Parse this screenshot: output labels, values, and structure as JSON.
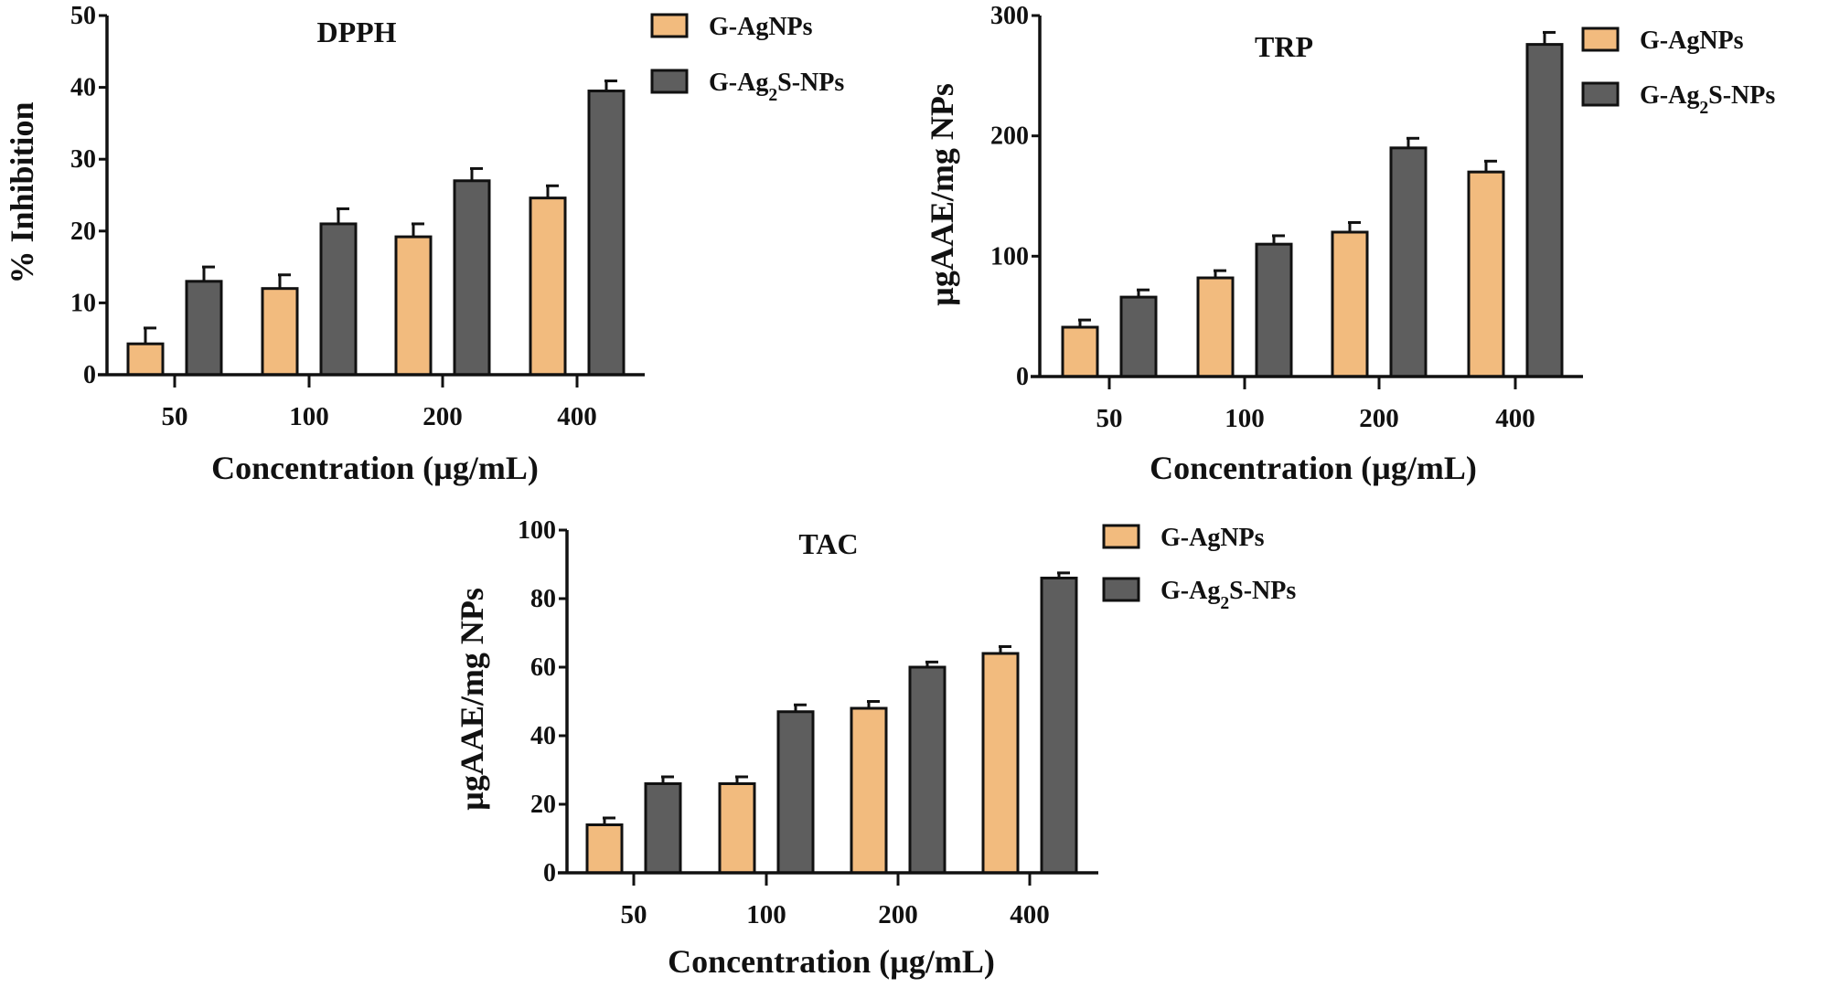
{
  "colors": {
    "G-AgNPs": "#f2bb7e",
    "G-Ag2S-NPs": "#5e5e5e",
    "axis": "#111111"
  },
  "chart_data": [
    {
      "type": "bar",
      "title": "DPPH",
      "xlabel": "Concentration (µg/mL)",
      "ylabel": "% Inhibition",
      "ylim": [
        0,
        50
      ],
      "yticks": [
        0,
        10,
        20,
        30,
        40,
        50
      ],
      "categories": [
        "50",
        "100",
        "200",
        "400"
      ],
      "grid": false,
      "legend": "top-right",
      "series": [
        {
          "name": "G-AgNPs",
          "values": [
            4.3,
            12,
            19.2,
            24.6
          ],
          "errors": [
            2.2,
            1.9,
            1.8,
            1.7
          ]
        },
        {
          "name": "G-Ag2S-NPs",
          "values": [
            13,
            21,
            27,
            39.5
          ],
          "errors": [
            2,
            2.1,
            1.7,
            1.4
          ]
        }
      ]
    },
    {
      "type": "bar",
      "title": "TRP",
      "xlabel": "Concentration (µg/mL)",
      "ylabel": "µgAAE/mg NPs",
      "ylim": [
        0,
        300
      ],
      "yticks": [
        0,
        100,
        200,
        300
      ],
      "categories": [
        "50",
        "100",
        "200",
        "400"
      ],
      "grid": false,
      "legend": "top-right",
      "series": [
        {
          "name": "G-AgNPs",
          "values": [
            41,
            82,
            120,
            170
          ],
          "errors": [
            6,
            6,
            8,
            9
          ]
        },
        {
          "name": "G-Ag2S-NPs",
          "values": [
            66,
            110,
            190,
            276
          ],
          "errors": [
            6,
            7,
            8,
            10
          ]
        }
      ]
    },
    {
      "type": "bar",
      "title": "TAC",
      "xlabel": "Concentration (µg/mL)",
      "ylabel": "µgAAE/mg NPs",
      "ylim": [
        0,
        100
      ],
      "yticks": [
        0,
        20,
        40,
        60,
        80,
        100
      ],
      "categories": [
        "50",
        "100",
        "200",
        "400"
      ],
      "grid": false,
      "legend": "top-right",
      "series": [
        {
          "name": "G-AgNPs",
          "values": [
            14,
            26,
            48,
            64
          ],
          "errors": [
            2,
            2,
            2,
            2
          ]
        },
        {
          "name": "G-Ag2S-NPs",
          "values": [
            26,
            47,
            60,
            86
          ],
          "errors": [
            2,
            2,
            1.5,
            1.5
          ]
        }
      ]
    }
  ]
}
